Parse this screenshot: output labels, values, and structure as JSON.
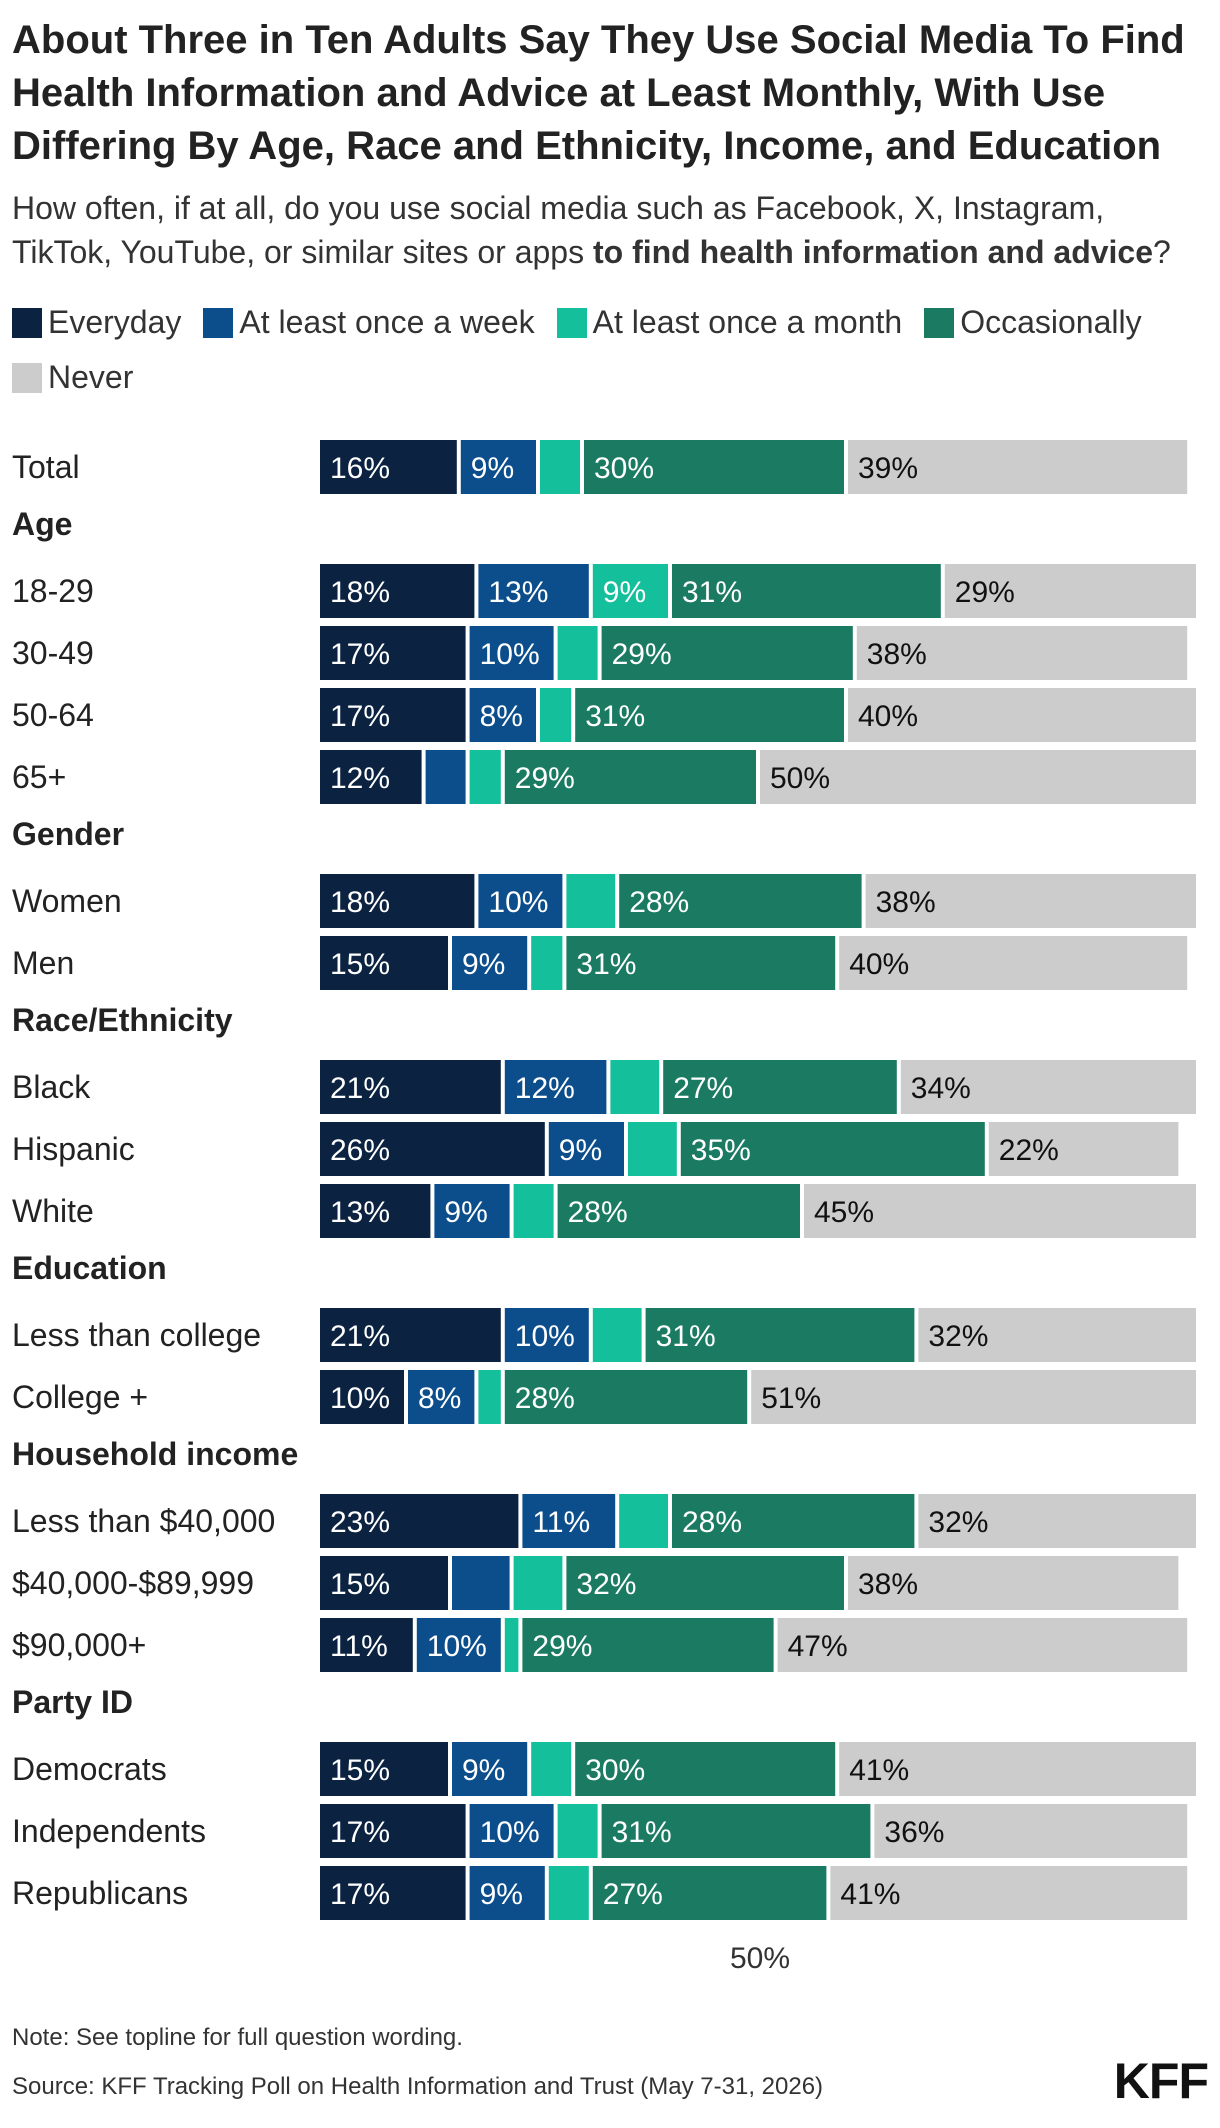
{
  "title": "About Three in Ten Adults Say They Use Social Media To Find Health Information and Advice at Least Monthly, With Use Differing By Age, Race and Ethnicity, Income, and Education",
  "subtitle_plain": "How often, if at all, do you use social media such as Facebook, X, Instagram, TikTok, YouTube, or similar sites or apps",
  "subtitle_bold": "to find health information and advice",
  "subtitle_end": "?",
  "note": "Note: See topline for full question wording.",
  "source": "Source: KFF Tracking Poll on Health Information and Trust (May 7-31, 2026)",
  "logo": "KFF",
  "colors": {
    "everyday": "#0b2341",
    "week": "#0c4e8c",
    "month": "#14bf9b",
    "occasionally": "#1b7a62",
    "never": "#cccccc"
  },
  "chart_data": {
    "type": "bar",
    "orientation": "horizontal",
    "stacked": true,
    "xlim": [
      0,
      100
    ],
    "reference_tick": "50%",
    "legend_position": "top",
    "series": [
      {
        "name": "Everyday",
        "color": "#0b2341"
      },
      {
        "name": "At least once a week",
        "color": "#0c4e8c"
      },
      {
        "name": "At least once a month",
        "color": "#14bf9b"
      },
      {
        "name": "Occasionally",
        "color": "#1b7a62"
      },
      {
        "name": "Never",
        "color": "#cccccc"
      }
    ],
    "rows": [
      {
        "label": "Total",
        "values": [
          16,
          9,
          5,
          30,
          39
        ]
      },
      {
        "group": "Age"
      },
      {
        "label": "18-29",
        "values": [
          18,
          13,
          9,
          31,
          29
        ]
      },
      {
        "label": "30-49",
        "values": [
          17,
          10,
          5,
          29,
          38
        ]
      },
      {
        "label": "50-64",
        "values": [
          17,
          8,
          4,
          31,
          40
        ]
      },
      {
        "label": "65+",
        "values": [
          12,
          5,
          4,
          29,
          50
        ]
      },
      {
        "group": "Gender"
      },
      {
        "label": "Women",
        "values": [
          18,
          10,
          6,
          28,
          38
        ]
      },
      {
        "label": "Men",
        "values": [
          15,
          9,
          4,
          31,
          40
        ]
      },
      {
        "group": "Race/Ethnicity"
      },
      {
        "label": "Black",
        "values": [
          21,
          12,
          6,
          27,
          34
        ]
      },
      {
        "label": "Hispanic",
        "values": [
          26,
          9,
          6,
          35,
          22
        ]
      },
      {
        "label": "White",
        "values": [
          13,
          9,
          5,
          28,
          45
        ]
      },
      {
        "group": "Education"
      },
      {
        "label": "Less than college",
        "values": [
          21,
          10,
          6,
          31,
          32
        ]
      },
      {
        "label": "College +",
        "values": [
          10,
          8,
          3,
          28,
          51
        ]
      },
      {
        "group": "Household income"
      },
      {
        "label": "Less than $40,000",
        "values": [
          23,
          11,
          6,
          28,
          32
        ]
      },
      {
        "label": "$40,000-$89,999",
        "values": [
          15,
          7,
          6,
          32,
          38
        ]
      },
      {
        "label": "$90,000+",
        "values": [
          11,
          10,
          2,
          29,
          47
        ]
      },
      {
        "group": "Party ID"
      },
      {
        "label": "Democrats",
        "values": [
          15,
          9,
          5,
          30,
          41
        ]
      },
      {
        "label": "Independents",
        "values": [
          17,
          10,
          5,
          31,
          36
        ]
      },
      {
        "label": "Republicans",
        "values": [
          17,
          9,
          5,
          27,
          41
        ]
      }
    ]
  }
}
